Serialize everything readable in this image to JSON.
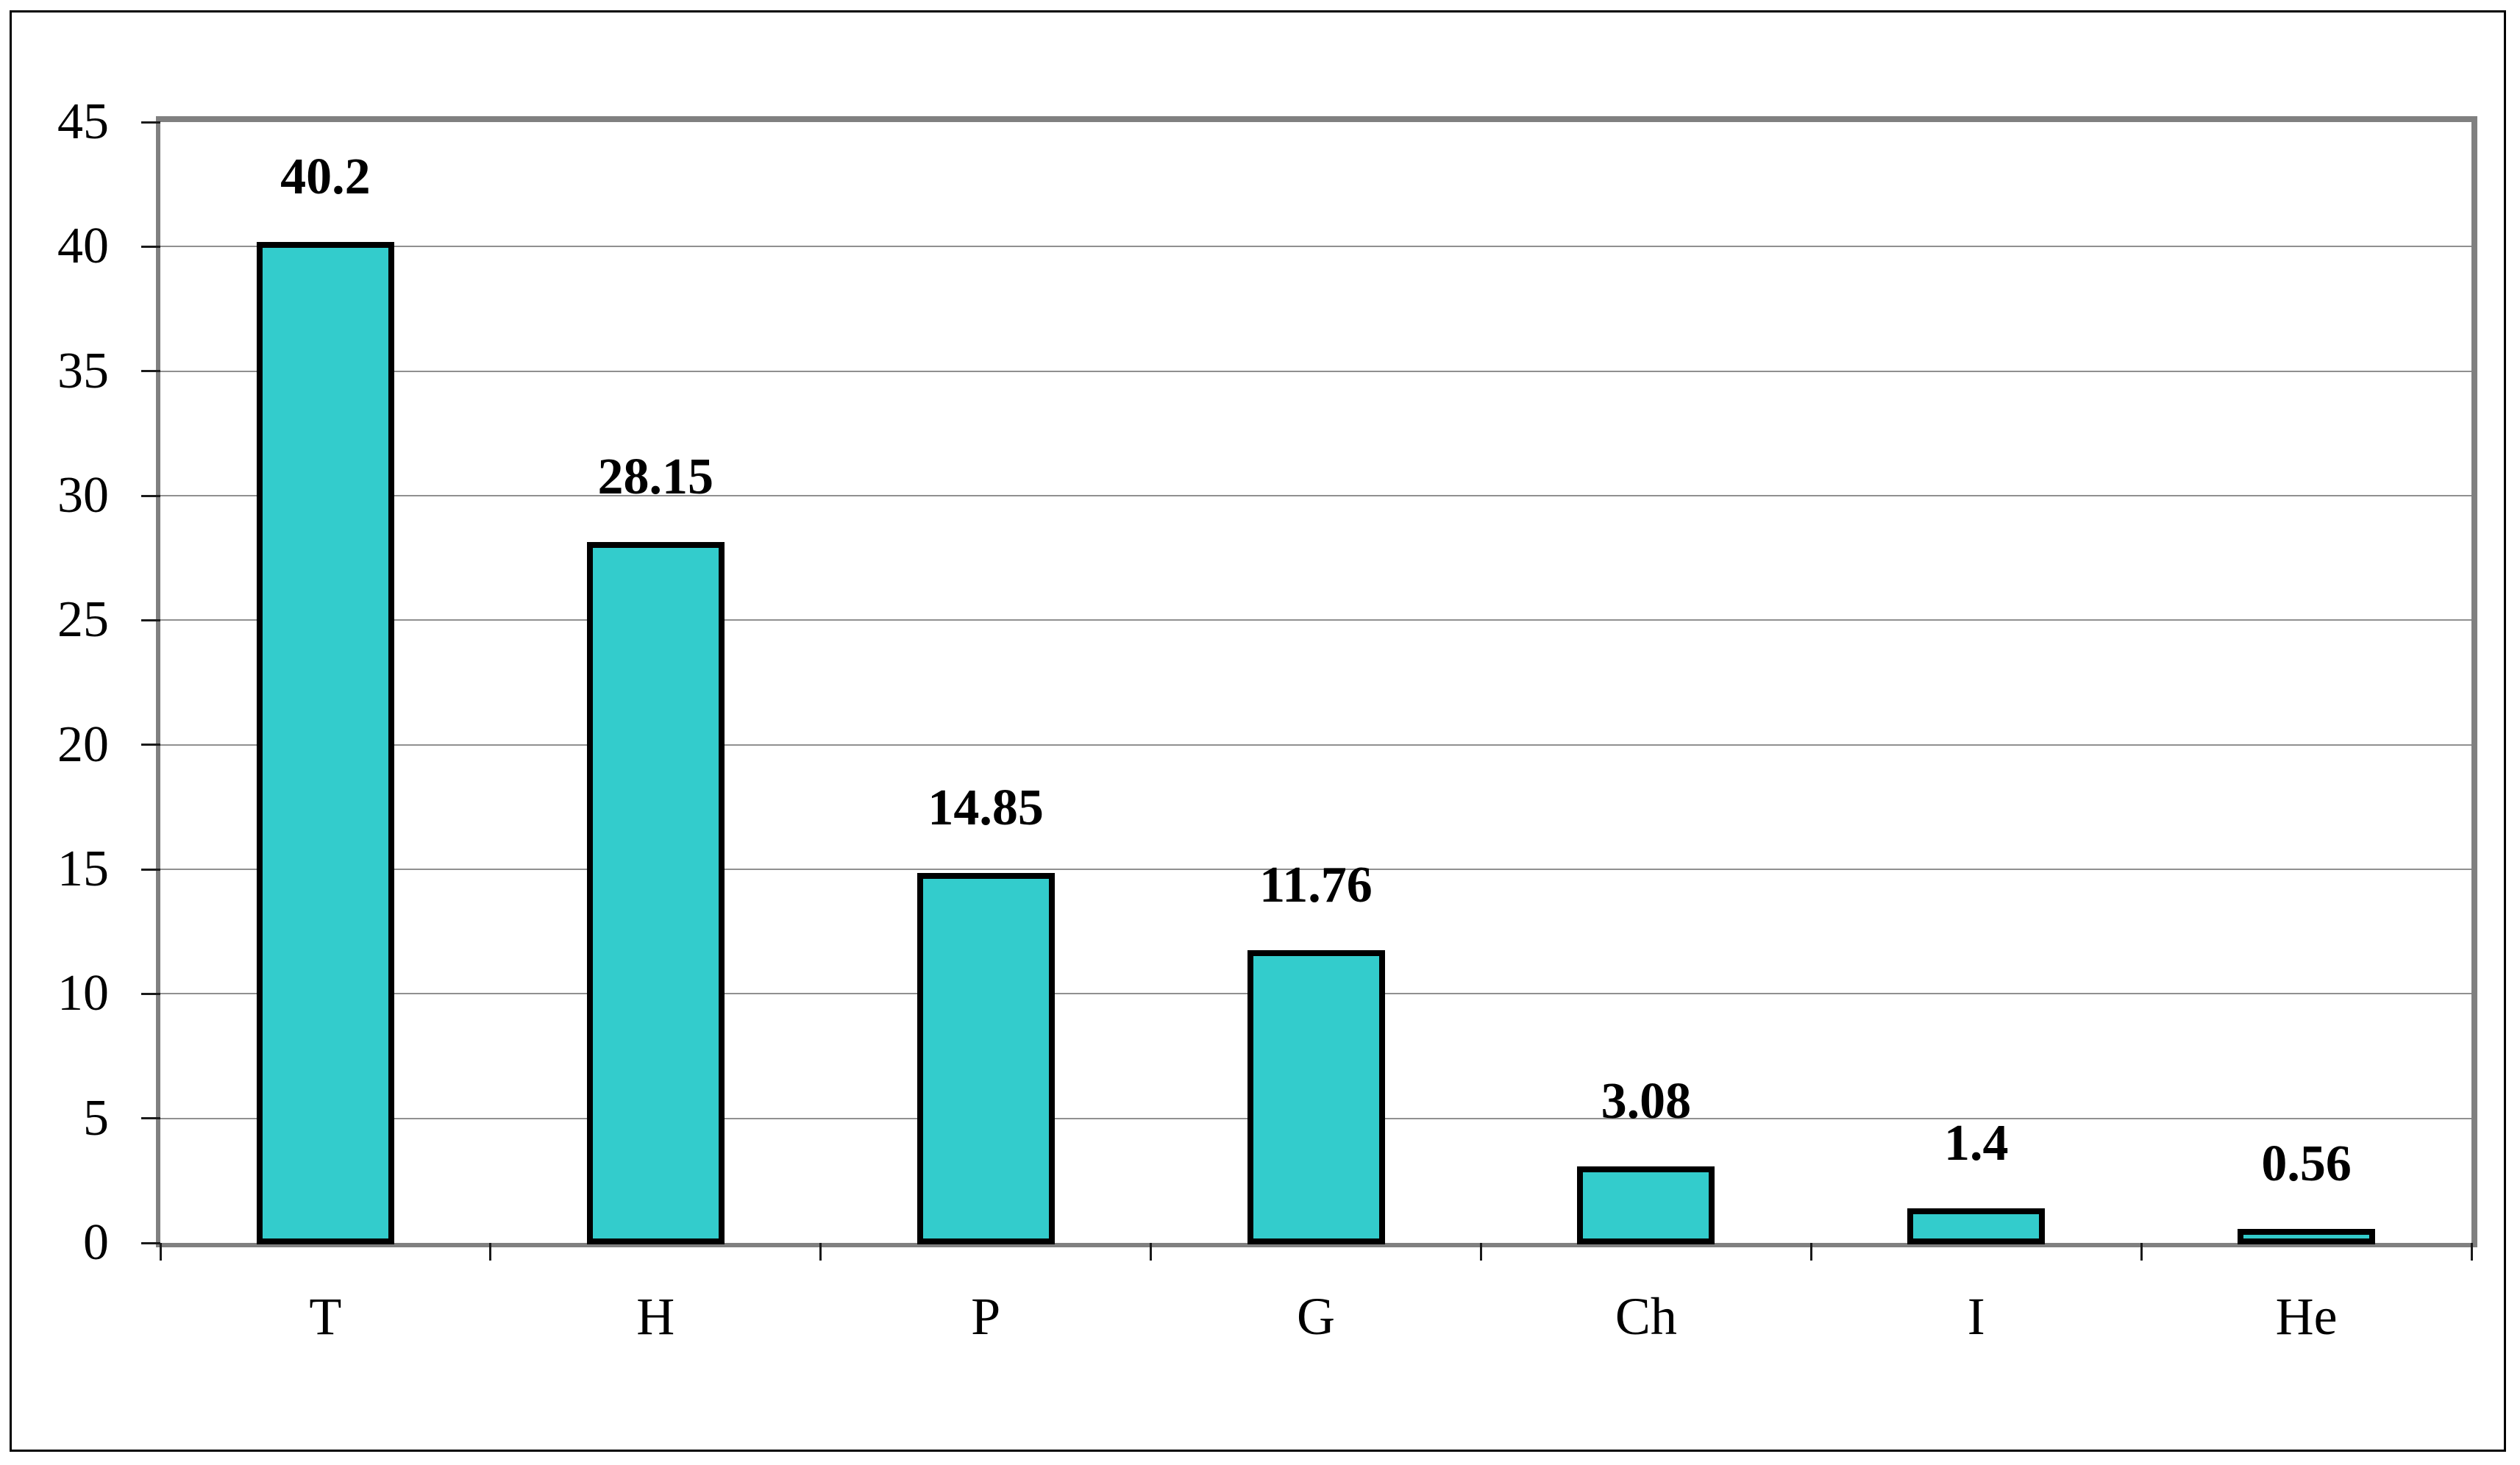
{
  "chart_data": {
    "type": "bar",
    "title": "",
    "categories": [
      "T",
      "H",
      "P",
      "G",
      "Ch",
      "I",
      "He"
    ],
    "values": [
      40.2,
      28.15,
      14.85,
      11.76,
      3.08,
      1.4,
      0.56
    ],
    "data_labels": [
      "40.2",
      "28.15",
      "14.85",
      "11.76",
      "3.08",
      "1.4",
      "0.56"
    ],
    "xlabel": "",
    "ylabel": "",
    "ylim": [
      0,
      45
    ],
    "ytick_step": 5,
    "ytick_labels": [
      "0",
      "5",
      "10",
      "15",
      "20",
      "25",
      "30",
      "35",
      "40",
      "45"
    ],
    "grid": true,
    "legend_position": "none",
    "colors": {
      "bar_fill": "#33CCCC",
      "bar_border": "#000000",
      "gridline": "#909090",
      "plot_border": "#808080",
      "tick": "#1A1A1A",
      "text": "#000000",
      "outer_frame": "#000000",
      "background": "#FFFFFF"
    }
  }
}
